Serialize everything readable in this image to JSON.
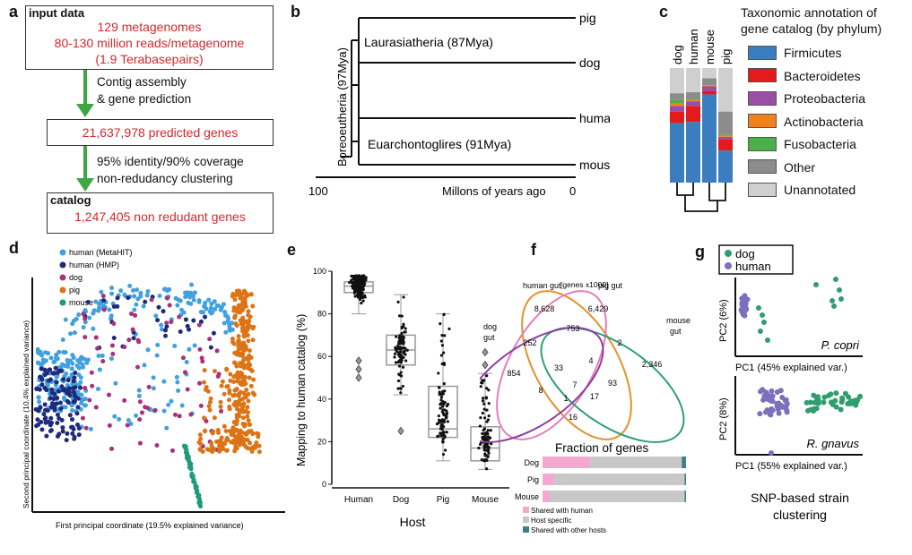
{
  "panels": {
    "a": {
      "label": "a",
      "box1_title": "input data",
      "box1_lines": [
        "129 metagenomes",
        "80-130 million reads/metagenome",
        "(1.9 Terabasepairs)"
      ],
      "step1": [
        "Contig assembly",
        "& gene prediction"
      ],
      "box2_line": "21,637,978 predicted genes",
      "step2": [
        "95% identity/90% coverage",
        "non-redudancy clustering"
      ],
      "box3_title": "catalog",
      "box3_line": "1,247,405 non redudant genes"
    },
    "b": {
      "label": "b",
      "tips": [
        "pig",
        "dog",
        "human",
        "mouse"
      ],
      "clade_laurasia": "Laurasiatheria (87Mya)",
      "clade_euarch": "Euarchontoglires (91Mya)",
      "root_label": "Boreoeutheria (97Mya)",
      "axis_left": "100",
      "axis_right": "0",
      "axis_title": "Millons of years ago"
    },
    "c": {
      "label": "c",
      "hosts": [
        "dog",
        "human",
        "mouse",
        "pig"
      ],
      "title_lines": [
        "Taxonomic annotation of",
        "gene catalog (by phylum)"
      ],
      "legend": [
        {
          "name": "Firmicutes",
          "color": "#3a7ebf"
        },
        {
          "name": "Bacteroidetes",
          "color": "#e41a1c"
        },
        {
          "name": "Proteobacteria",
          "color": "#9a4fa6"
        },
        {
          "name": "Actinobacteria",
          "color": "#f0821e"
        },
        {
          "name": "Fusobacteria",
          "color": "#4daf4a"
        },
        {
          "name": "Other",
          "color": "#8c8c8c"
        },
        {
          "name": "Unannotated",
          "color": "#cfcfcf"
        }
      ]
    },
    "d": {
      "label": "d",
      "legend": [
        {
          "name": "human (MetaHIT)",
          "color": "#41a0e0"
        },
        {
          "name": "human (HMP)",
          "color": "#1f2a7a"
        },
        {
          "name": "dog",
          "color": "#a8317a"
        },
        {
          "name": "pig",
          "color": "#dc7416"
        },
        {
          "name": "mouse",
          "color": "#1e9b7a"
        }
      ],
      "xlabel": "First principal coordinate (19.5% explained variance)",
      "ylabel": "Second principal coordinate (10.4% explained variance)"
    },
    "e": {
      "label": "e",
      "ylabel": "Mapping to human catalog (%)",
      "xlabel": "Host"
    },
    "f": {
      "label": "f",
      "subtitle": "[genes x1000]",
      "set_human": "human gut",
      "set_pig": "pig gut",
      "set_dog": [
        "dog",
        "gut"
      ],
      "set_mouse": [
        "mouse",
        "gut"
      ],
      "numbers": {
        "human_only": "8,628",
        "pig_only": "6,429",
        "dog_only": "854",
        "mouse_only": "2,346",
        "hp": "753",
        "hd": "252",
        "pm": "2",
        "hpd": "33",
        "hpm": "4",
        "center": "7",
        "dm": "16",
        "dhm": "8",
        "hdm2": "1",
        "pdm": "17",
        "pm2": "93"
      },
      "bar_title": "Fraction of genes",
      "bar_legend": [
        "Shared with human",
        "Host specific",
        "Shared with other hosts"
      ],
      "bar_colors": [
        "#f4a7cf",
        "#c8c8c8",
        "#3d7f8c"
      ]
    },
    "g": {
      "label": "g",
      "legend": [
        {
          "name": "dog",
          "color": "#2f9e6e"
        },
        {
          "name": "human",
          "color": "#7c6fbd"
        }
      ],
      "top_species": "P. copri",
      "top_xlabel": "PC1 (45% explained var.)",
      "top_ylabel": "PC2 (6%)",
      "bottom_species": "R. gnavus",
      "bottom_xlabel": "PC1 (55% explained var.)",
      "bottom_ylabel": "PC2 (8%)",
      "caption": [
        "SNP-based strain",
        "clustering"
      ]
    }
  },
  "chart_data": [
    {
      "type": "bar",
      "panel": "c",
      "categories": [
        "dog",
        "human",
        "mouse",
        "pig"
      ],
      "series": [
        {
          "name": "Firmicutes",
          "values": [
            0.52,
            0.53,
            0.77,
            0.28
          ]
        },
        {
          "name": "Bacteroidetes",
          "values": [
            0.1,
            0.14,
            0.03,
            0.1
          ]
        },
        {
          "name": "Proteobacteria",
          "values": [
            0.05,
            0.04,
            0.04,
            0.02
          ]
        },
        {
          "name": "Actinobacteria",
          "values": [
            0.02,
            0.01,
            0.01,
            0.01
          ]
        },
        {
          "name": "Fusobacteria",
          "values": [
            0.03,
            0.01,
            0.0,
            0.01
          ]
        },
        {
          "name": "Other",
          "values": [
            0.06,
            0.06,
            0.06,
            0.2
          ]
        },
        {
          "name": "Unannotated",
          "values": [
            0.22,
            0.21,
            0.09,
            0.38
          ]
        }
      ]
    },
    {
      "type": "bar",
      "panel": "e",
      "categories": [
        "Human",
        "Dog",
        "Pig",
        "Mouse"
      ],
      "ylim": [
        0,
        100
      ],
      "yticks": [
        0,
        20,
        40,
        60,
        80,
        100
      ],
      "boxes": [
        {
          "min": 80,
          "q1": 90,
          "median": 93,
          "q3": 95,
          "max": 98
        },
        {
          "min": 42,
          "q1": 56,
          "median": 63,
          "q3": 70,
          "max": 89
        },
        {
          "min": 11,
          "q1": 22,
          "median": 26,
          "q3": 46,
          "max": 80
        },
        {
          "min": 7,
          "q1": 11,
          "median": 17,
          "q3": 27,
          "max": 52
        }
      ],
      "outliers": [
        [
          50,
          54,
          58
        ],
        [
          25
        ],
        [],
        [
          62,
          56
        ]
      ]
    },
    {
      "type": "bar",
      "panel": "f",
      "categories": [
        "Dog",
        "Pig",
        "Mouse"
      ],
      "series": [
        {
          "name": "Shared with human",
          "values": [
            0.33,
            0.08,
            0.05
          ]
        },
        {
          "name": "Host specific",
          "values": [
            0.64,
            0.91,
            0.94
          ]
        },
        {
          "name": "Shared with other hosts",
          "values": [
            0.03,
            0.01,
            0.01
          ]
        }
      ]
    }
  ]
}
